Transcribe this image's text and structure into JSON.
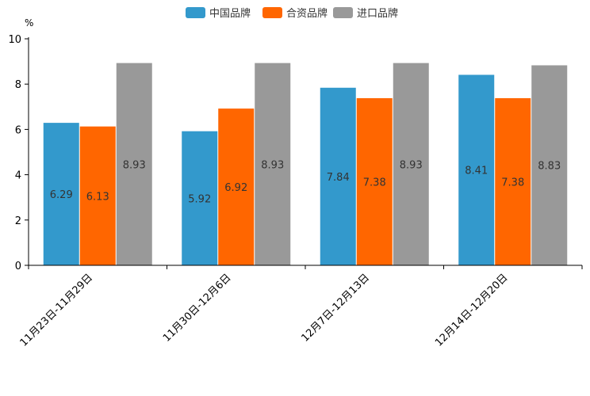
{
  "chart_data": {
    "type": "bar",
    "title": "",
    "xlabel": "",
    "ylabel": "%",
    "ylim": [
      0,
      10
    ],
    "yticks": [
      0,
      2,
      4,
      6,
      8,
      10
    ],
    "grid": false,
    "legend_position": "top-center",
    "categories": [
      "11月23日-11月29日",
      "11月30日-12月6日",
      "12月7日-12月13日",
      "12月14日-12月20日"
    ],
    "series": [
      {
        "name": "中国品牌",
        "color": "#3399cc",
        "values": [
          6.29,
          5.92,
          7.84,
          8.41
        ]
      },
      {
        "name": "合资品牌",
        "color": "#ff6600",
        "values": [
          6.13,
          6.92,
          7.38,
          7.38
        ]
      },
      {
        "name": "进口品牌",
        "color": "#999999",
        "values": [
          8.93,
          8.93,
          8.93,
          8.83
        ]
      }
    ]
  }
}
